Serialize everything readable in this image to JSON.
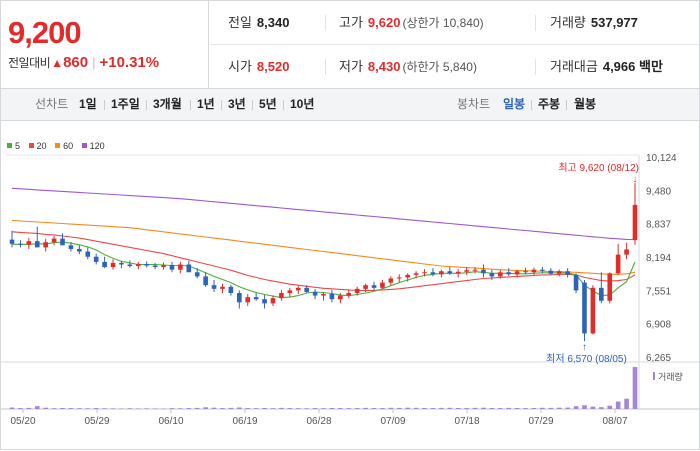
{
  "colors": {
    "up": "#e22b2b",
    "down": "#2d63b8",
    "ma5": "#4caf3b",
    "ma20": "#e84a4a",
    "ma60": "#f28b1e",
    "ma120": "#9b59c9",
    "volume": "#a387d6"
  },
  "summary": {
    "price": "9,200",
    "change_label": "전일대비",
    "change_arrow": "▲",
    "change_value": "860",
    "change_rate": "+10.31%",
    "prev_close": {
      "label": "전일",
      "value": "8,340"
    },
    "high": {
      "label": "고가",
      "value": "9,620",
      "sub": "(상한가 10,840)"
    },
    "volume": {
      "label": "거래량",
      "value": "537,977"
    },
    "open": {
      "label": "시가",
      "value": "8,520"
    },
    "low": {
      "label": "저가",
      "value": "8,430",
      "sub": "(하한가 5,840)"
    },
    "amount": {
      "label": "거래대금",
      "value": "4,966",
      "unit": "백만"
    }
  },
  "period_bar": {
    "line_label": "선차트",
    "line_periods": [
      "1일",
      "1주일",
      "3개월",
      "1년",
      "3년",
      "5년",
      "10년"
    ],
    "candle_label": "봉차트",
    "candle_periods": [
      "일봉",
      "주봉",
      "월봉"
    ],
    "active_candle": "일봉"
  },
  "chart_data": {
    "type": "candlestick",
    "legend": [
      "5",
      "20",
      "60",
      "120"
    ],
    "y_ticks": [
      "10,124",
      "9,480",
      "8,837",
      "8,194",
      "7,551",
      "6,908",
      "6,265"
    ],
    "y_range": [
      6265,
      10124
    ],
    "x_ticks": [
      "05/20",
      "05/29",
      "06/10",
      "06/19",
      "06/28",
      "07/09",
      "07/18",
      "07/29",
      "08/07"
    ],
    "volume_label": "거래량",
    "annotations": {
      "high": {
        "text": "최고 9,620 (08/12)",
        "value": 9620
      },
      "low": {
        "text": "최저 6,570 (08/05)",
        "value": 6570
      }
    },
    "candles": [
      [
        8530,
        8700,
        8380,
        8450
      ],
      [
        8450,
        8520,
        8380,
        8430
      ],
      [
        8430,
        8560,
        8350,
        8500
      ],
      [
        8500,
        8780,
        8400,
        8380
      ],
      [
        8380,
        8550,
        8300,
        8480
      ],
      [
        8480,
        8600,
        8420,
        8550
      ],
      [
        8550,
        8650,
        8450,
        8420
      ],
      [
        8420,
        8480,
        8300,
        8350
      ],
      [
        8350,
        8420,
        8250,
        8300
      ],
      [
        8300,
        8380,
        8150,
        8200
      ],
      [
        8200,
        8260,
        8050,
        8100
      ],
      [
        8100,
        8200,
        7980,
        8000
      ],
      [
        8000,
        8150,
        7950,
        8080
      ],
      [
        8080,
        8120,
        7980,
        8050
      ],
      [
        8050,
        8130,
        7990,
        8020
      ],
      [
        8020,
        8100,
        7960,
        8060
      ],
      [
        8060,
        8110,
        7990,
        8030
      ],
      [
        8030,
        8080,
        7960,
        8000
      ],
      [
        8000,
        8090,
        7950,
        8040
      ],
      [
        8040,
        8100,
        7900,
        7950
      ],
      [
        7950,
        8100,
        7880,
        8050
      ],
      [
        8050,
        8120,
        7930,
        7900
      ],
      [
        7900,
        7980,
        7780,
        7820
      ],
      [
        7820,
        7900,
        7620,
        7650
      ],
      [
        7650,
        7750,
        7520,
        7580
      ],
      [
        7580,
        7680,
        7500,
        7620
      ],
      [
        7620,
        7660,
        7450,
        7500
      ],
      [
        7500,
        7550,
        7200,
        7320
      ],
      [
        7320,
        7480,
        7250,
        7420
      ],
      [
        7420,
        7500,
        7350,
        7380
      ],
      [
        7380,
        7460,
        7200,
        7300
      ],
      [
        7300,
        7450,
        7250,
        7400
      ],
      [
        7400,
        7560,
        7350,
        7500
      ],
      [
        7500,
        7600,
        7420,
        7550
      ],
      [
        7550,
        7640,
        7480,
        7600
      ],
      [
        7600,
        7650,
        7500,
        7520
      ],
      [
        7520,
        7580,
        7380,
        7450
      ],
      [
        7450,
        7520,
        7350,
        7480
      ],
      [
        7480,
        7560,
        7320,
        7380
      ],
      [
        7380,
        7500,
        7300,
        7450
      ],
      [
        7450,
        7560,
        7400,
        7500
      ],
      [
        7500,
        7620,
        7450,
        7580
      ],
      [
        7580,
        7680,
        7520,
        7650
      ],
      [
        7650,
        7720,
        7560,
        7600
      ],
      [
        7600,
        7750,
        7580,
        7700
      ],
      [
        7700,
        7820,
        7650,
        7780
      ],
      [
        7780,
        7860,
        7700,
        7800
      ],
      [
        7800,
        7880,
        7720,
        7850
      ],
      [
        7850,
        7920,
        7780,
        7880
      ],
      [
        7880,
        7960,
        7820,
        7900
      ],
      [
        7900,
        7980,
        7820,
        7860
      ],
      [
        7860,
        7950,
        7800,
        7920
      ],
      [
        7920,
        8000,
        7850,
        7880
      ],
      [
        7880,
        7960,
        7800,
        7910
      ],
      [
        7910,
        8000,
        7850,
        7940
      ],
      [
        7940,
        8000,
        7880,
        7950
      ],
      [
        7950,
        8050,
        7800,
        7880
      ],
      [
        7880,
        7950,
        7750,
        7820
      ],
      [
        7820,
        7950,
        7780,
        7900
      ],
      [
        7900,
        7980,
        7830,
        7860
      ],
      [
        7860,
        7950,
        7800,
        7920
      ],
      [
        7920,
        7990,
        7860,
        7900
      ],
      [
        7900,
        7990,
        7850,
        7950
      ],
      [
        7950,
        8000,
        7880,
        7930
      ],
      [
        7930,
        7980,
        7850,
        7870
      ],
      [
        7870,
        7950,
        7820,
        7920
      ],
      [
        7920,
        7980,
        7800,
        7850
      ],
      [
        7850,
        7880,
        7500,
        7550
      ],
      [
        7700,
        7750,
        6570,
        6720
      ],
      [
        6720,
        7650,
        6700,
        7600
      ],
      [
        7600,
        7900,
        7300,
        7350
      ],
      [
        7350,
        7900,
        7300,
        7880
      ],
      [
        7880,
        8450,
        7850,
        8240
      ],
      [
        8240,
        8470,
        8150,
        8340
      ],
      [
        8520,
        9620,
        8430,
        9200
      ]
    ],
    "ma5": [
      8440,
      8440,
      8440,
      8450,
      8448,
      8472,
      8482,
      8460,
      8430,
      8390,
      8330,
      8240,
      8170,
      8110,
      8080,
      8050,
      8050,
      8050,
      8040,
      8030,
      8030,
      8020,
      7960,
      7890,
      7820,
      7760,
      7700,
      7620,
      7560,
      7510,
      7470,
      7440,
      7410,
      7420,
      7450,
      7500,
      7520,
      7510,
      7490,
      7460,
      7450,
      7470,
      7500,
      7530,
      7580,
      7640,
      7700,
      7750,
      7800,
      7840,
      7860,
      7880,
      7880,
      7880,
      7890,
      7910,
      7900,
      7880,
      7880,
      7880,
      7870,
      7870,
      7880,
      7890,
      7890,
      7890,
      7890,
      7850,
      7650,
      7540,
      7450,
      7460,
      7600,
      7720,
      8100
    ],
    "ma20": [
      8680,
      8670,
      8660,
      8650,
      8630,
      8620,
      8600,
      8580,
      8560,
      8530,
      8500,
      8470,
      8440,
      8410,
      8380,
      8350,
      8320,
      8290,
      8260,
      8220,
      8180,
      8140,
      8100,
      8060,
      8020,
      7980,
      7940,
      7890,
      7840,
      7800,
      7760,
      7730,
      7700,
      7670,
      7650,
      7630,
      7610,
      7590,
      7580,
      7570,
      7560,
      7550,
      7550,
      7550,
      7560,
      7570,
      7580,
      7600,
      7620,
      7640,
      7660,
      7680,
      7700,
      7720,
      7740,
      7760,
      7780,
      7790,
      7800,
      7810,
      7820,
      7830,
      7840,
      7850,
      7850,
      7860,
      7860,
      7850,
      7800,
      7770,
      7740,
      7730,
      7740,
      7760,
      7850
    ],
    "ma60": [
      8900,
      8890,
      8880,
      8870,
      8860,
      8850,
      8840,
      8830,
      8820,
      8810,
      8800,
      8790,
      8780,
      8770,
      8760,
      8740,
      8720,
      8700,
      8680,
      8660,
      8640,
      8620,
      8600,
      8580,
      8560,
      8540,
      8520,
      8500,
      8480,
      8460,
      8440,
      8420,
      8400,
      8380,
      8360,
      8340,
      8320,
      8300,
      8280,
      8260,
      8240,
      8220,
      8200,
      8180,
      8160,
      8140,
      8120,
      8100,
      8080,
      8060,
      8040,
      8020,
      8010,
      8000,
      7990,
      7980,
      7970,
      7960,
      7950,
      7940,
      7935,
      7930,
      7925,
      7920,
      7915,
      7910,
      7905,
      7900,
      7890,
      7880,
      7870,
      7860,
      7860,
      7870,
      7900
    ],
    "ma120": [
      9520,
      9510,
      9500,
      9490,
      9480,
      9470,
      9460,
      9450,
      9440,
      9430,
      9420,
      9410,
      9400,
      9390,
      9380,
      9370,
      9360,
      9350,
      9340,
      9330,
      9320,
      9305,
      9290,
      9275,
      9260,
      9245,
      9230,
      9215,
      9200,
      9185,
      9170,
      9155,
      9140,
      9125,
      9110,
      9095,
      9080,
      9065,
      9050,
      9035,
      9020,
      9005,
      8990,
      8975,
      8960,
      8945,
      8930,
      8915,
      8900,
      8885,
      8870,
      8855,
      8840,
      8825,
      8810,
      8795,
      8780,
      8765,
      8750,
      8735,
      8720,
      8705,
      8690,
      8675,
      8660,
      8645,
      8630,
      8615,
      8600,
      8585,
      8570,
      8555,
      8545,
      8535,
      8530
    ],
    "volumes": [
      15,
      10,
      12,
      30,
      14,
      9,
      11,
      10,
      9,
      8,
      10,
      8,
      7,
      6,
      8,
      6,
      7,
      6,
      5,
      9,
      8,
      10,
      12,
      18,
      14,
      10,
      12,
      16,
      10,
      9,
      11,
      9,
      12,
      10,
      9,
      8,
      10,
      9,
      11,
      10,
      9,
      10,
      12,
      11,
      10,
      13,
      12,
      14,
      12,
      11,
      10,
      12,
      13,
      11,
      10,
      12,
      14,
      11,
      10,
      12,
      11,
      10,
      11,
      13,
      12,
      14,
      15,
      30,
      40,
      25,
      20,
      35,
      80,
      110,
      450
    ]
  }
}
